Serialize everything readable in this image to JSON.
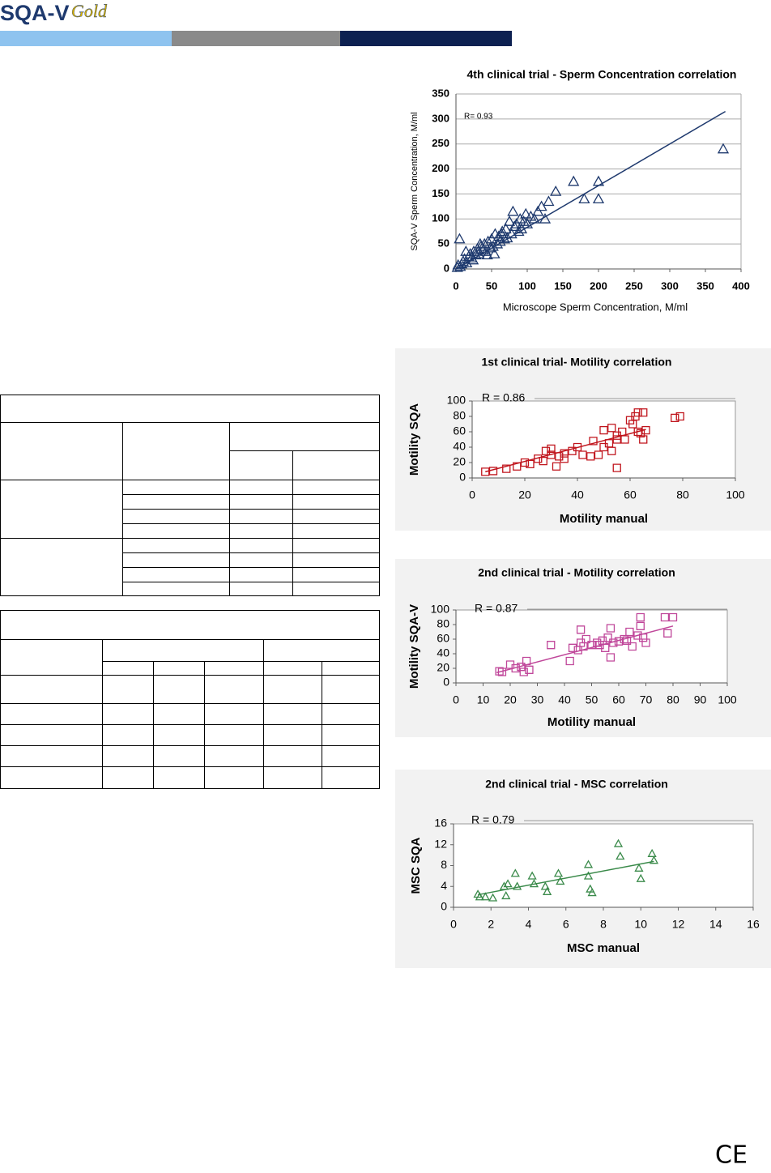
{
  "header": {
    "logo": "SQA-V",
    "logo_script": "Gold"
  },
  "chart_data": [
    {
      "type": "scatter",
      "title": "4th clinical trial - Sperm Concentration correlation",
      "xlabel": "Microscope Sperm Concentration, M/ml",
      "ylabel": "SQA-V Sperm Concentration, M/ml",
      "annotation": "R= 0.93",
      "marker": "triangle",
      "color": "#1f3a6e",
      "grid": true,
      "x": [
        2,
        5,
        8,
        10,
        12,
        15,
        18,
        20,
        22,
        25,
        28,
        30,
        32,
        35,
        38,
        40,
        42,
        45,
        48,
        50,
        52,
        55,
        58,
        60,
        62,
        65,
        68,
        70,
        72,
        75,
        78,
        80,
        82,
        85,
        88,
        90,
        92,
        95,
        98,
        100,
        105,
        110,
        115,
        120,
        125,
        130,
        140,
        165,
        180,
        200,
        200,
        375,
        3,
        6,
        14,
        24,
        34,
        44,
        54,
        64
      ],
      "y": [
        3,
        60,
        10,
        15,
        20,
        12,
        25,
        30,
        22,
        35,
        28,
        40,
        30,
        45,
        38,
        50,
        35,
        55,
        42,
        60,
        45,
        70,
        50,
        65,
        55,
        75,
        60,
        80,
        62,
        95,
        70,
        115,
        85,
        90,
        75,
        100,
        80,
        95,
        110,
        90,
        105,
        100,
        115,
        125,
        100,
        135,
        155,
        175,
        140,
        175,
        140,
        240,
        8,
        5,
        35,
        18,
        50,
        28,
        30,
        70
      ],
      "trendline": {
        "x": [
          0,
          378
        ],
        "y": [
          0,
          315
        ]
      },
      "xlim": [
        0,
        400
      ],
      "ylim": [
        0,
        350
      ],
      "xticks": [
        0,
        50,
        100,
        150,
        200,
        250,
        300,
        350,
        400
      ],
      "yticks": [
        0,
        50,
        100,
        150,
        200,
        250,
        300,
        350
      ]
    },
    {
      "type": "scatter",
      "title": "1st clinical trial- Motility correlation",
      "xlabel": "Motility manual",
      "ylabel": "Motility SQA",
      "annotation": "R = 0.86",
      "marker": "square",
      "color": "#c0141c",
      "grid": false,
      "x": [
        5,
        8,
        13,
        17,
        20,
        22,
        25,
        27,
        28,
        30,
        30,
        32,
        33,
        35,
        35,
        38,
        40,
        42,
        45,
        46,
        48,
        50,
        50,
        52,
        53,
        55,
        55,
        57,
        58,
        60,
        61,
        62,
        63,
        63,
        64,
        65,
        65,
        66,
        77,
        79,
        53,
        55
      ],
      "y": [
        8,
        9,
        12,
        15,
        20,
        18,
        25,
        22,
        35,
        30,
        38,
        15,
        28,
        32,
        25,
        35,
        40,
        30,
        28,
        48,
        30,
        40,
        62,
        45,
        35,
        55,
        13,
        60,
        50,
        75,
        70,
        80,
        85,
        60,
        58,
        85,
        50,
        62,
        78,
        80,
        65,
        50
      ],
      "trendline": {
        "x": [
          5,
          66
        ],
        "y": [
          8,
          63
        ]
      },
      "xlim": [
        0,
        100
      ],
      "ylim": [
        0,
        100
      ],
      "xticks": [
        0,
        20,
        40,
        60,
        80,
        100
      ],
      "yticks": [
        0,
        20,
        40,
        60,
        80,
        100
      ]
    },
    {
      "type": "scatter",
      "title": "2nd clinical trial - Motility correlation",
      "xlabel": "Motility manual",
      "ylabel": "Motility SQA-V",
      "annotation": "R = 0.87",
      "marker": "square",
      "color": "#c0479a",
      "grid": false,
      "x": [
        16,
        17,
        20,
        22,
        24,
        25,
        26,
        27,
        35,
        42,
        43,
        45,
        46,
        46,
        47,
        48,
        50,
        52,
        53,
        54,
        55,
        56,
        57,
        57,
        58,
        60,
        62,
        63,
        64,
        65,
        67,
        68,
        68,
        69,
        70,
        77,
        78,
        80
      ],
      "y": [
        16,
        15,
        25,
        20,
        22,
        15,
        30,
        18,
        52,
        30,
        48,
        45,
        73,
        55,
        50,
        60,
        52,
        55,
        52,
        58,
        48,
        62,
        75,
        35,
        55,
        57,
        60,
        58,
        70,
        50,
        65,
        90,
        78,
        62,
        55,
        90,
        68,
        90
      ],
      "trendline": {
        "x": [
          15,
          80
        ],
        "y": [
          14,
          78
        ]
      },
      "xlim": [
        0,
        100
      ],
      "ylim": [
        0,
        100
      ],
      "xticks": [
        0,
        10,
        20,
        30,
        40,
        50,
        60,
        70,
        80,
        90,
        100
      ],
      "yticks": [
        0,
        20,
        40,
        60,
        80,
        100
      ]
    },
    {
      "type": "scatter",
      "title": "2nd clinical trial - MSC correlation",
      "xlabel": "MSC manual",
      "ylabel": "MSC SQA",
      "annotation": "R = 0.79",
      "marker": "triangle",
      "color": "#3a8a4a",
      "grid": false,
      "x": [
        1.3,
        1.4,
        1.7,
        2.1,
        2.7,
        2.8,
        2.9,
        3.3,
        3.4,
        4.2,
        4.3,
        4.9,
        5.0,
        5.6,
        5.7,
        7.2,
        7.2,
        7.3,
        7.4,
        8.8,
        8.9,
        9.9,
        10.0,
        10.6,
        10.7
      ],
      "y": [
        2.5,
        2.0,
        2.0,
        1.8,
        4.0,
        2.2,
        4.5,
        6.5,
        4.0,
        6.0,
        4.5,
        4.0,
        3.0,
        6.5,
        5.0,
        8.2,
        6.0,
        3.5,
        2.8,
        12.2,
        9.8,
        7.5,
        5.5,
        10.3,
        9.0
      ],
      "trendline": {
        "x": [
          1.3,
          10.7
        ],
        "y": [
          2.4,
          8.8
        ]
      },
      "xlim": [
        0,
        16
      ],
      "ylim": [
        0,
        16
      ],
      "xticks": [
        0,
        2,
        4,
        6,
        8,
        10,
        12,
        14,
        16
      ],
      "yticks": [
        0,
        4,
        8,
        12,
        16
      ]
    }
  ],
  "footer": {
    "mark": "CE"
  }
}
